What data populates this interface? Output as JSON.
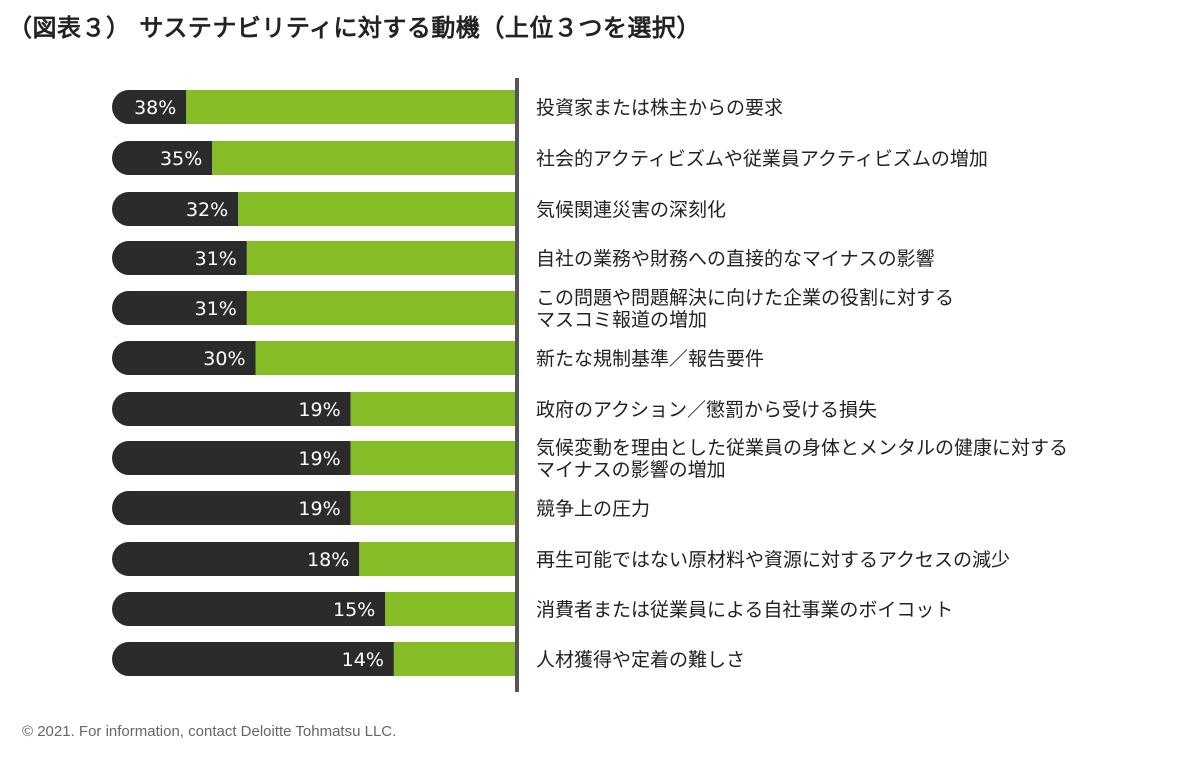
{
  "title": "（図表３） サステナビリティに対する動機（上位３つを選択）",
  "footer": "© 2021. For information, contact Deloitte Tohmatsu LLC.",
  "colors": {
    "bar_fill": "#86bc25",
    "bar_track": "#2b2b2b",
    "label_text": "#ffffff",
    "divider": "#555555"
  },
  "chart_data": {
    "type": "bar",
    "orientation": "horizontal",
    "title": "（図表３） サステナビリティに対する動機（上位３つを選択）",
    "unit": "%",
    "categories": [
      [
        "投資家または株主からの要求"
      ],
      [
        "社会的アクティビズムや従業員アクティビズムの増加"
      ],
      [
        "気候関連災害の深刻化"
      ],
      [
        "自社の業務や財務への直接的なマイナスの影響"
      ],
      [
        "この問題や問題解決に向けた企業の役割に対する",
        "マスコミ報道の増加"
      ],
      [
        "新たな規制基準／報告要件"
      ],
      [
        "政府のアクション／懲罰から受ける損失"
      ],
      [
        "気候変動を理由とした従業員の身体とメンタルの健康に対する",
        "マイナスの影響の増加"
      ],
      [
        "競争上の圧力"
      ],
      [
        "再生可能ではない原材料や資源に対するアクセスの減少"
      ],
      [
        "消費者または従業員による自社事業のボイコット"
      ],
      [
        "人材獲得や定着の難しさ"
      ]
    ],
    "values": [
      38,
      35,
      32,
      31,
      31,
      30,
      19,
      19,
      19,
      18,
      15,
      14
    ],
    "value_labels": [
      "38%",
      "35%",
      "32%",
      "31%",
      "31%",
      "30%",
      "19%",
      "19%",
      "19%",
      "18%",
      "15%",
      "14%"
    ]
  }
}
